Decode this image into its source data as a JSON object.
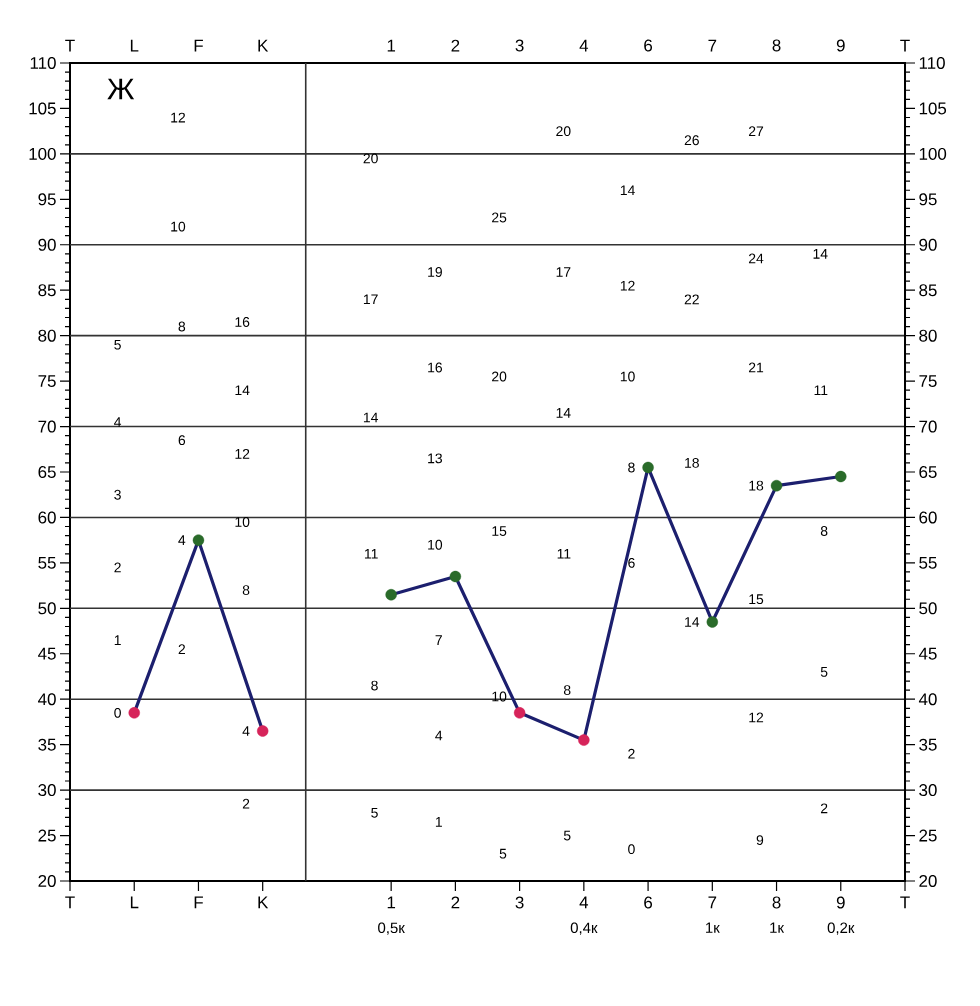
{
  "chart_data": {
    "type": "line",
    "categories": [
      "T",
      "L",
      "F",
      "K",
      null,
      "1",
      "2",
      "3",
      "4",
      "6",
      "7",
      "8",
      "9",
      "T"
    ],
    "series": [
      {
        "color": "#1c1f6e",
        "values": [
          null,
          38.5,
          57.5,
          36.5,
          null,
          51.5,
          53.5,
          38.5,
          35.5,
          65.5,
          48.5,
          63.5,
          64.5,
          null
        ],
        "colors": [
          null,
          "#d6245a",
          "#2a6b2a",
          "#d6245a",
          null,
          "#2a6b2a",
          "#2a6b2a",
          "#d6245a",
          "#d6245a",
          "#2a6b2a",
          "#2a6b2a",
          "#2a6b2a",
          "#2a6b2a",
          null
        ]
      }
    ],
    "marker": "circle",
    "line_style": "solid",
    "ylim": [
      20,
      110
    ],
    "yticks": [
      20,
      25,
      30,
      35,
      40,
      45,
      50,
      55,
      60,
      65,
      70,
      75,
      80,
      85,
      90,
      95,
      100,
      105,
      110
    ],
    "y2lim": [
      20,
      110
    ],
    "y2ticks": [
      20,
      25,
      30,
      35,
      40,
      45,
      50,
      55,
      60,
      65,
      70,
      75,
      80,
      85,
      90,
      95,
      100,
      105,
      110
    ],
    "ref_lines": [
      {
        "axis": "y",
        "value": 30,
        "color": "#333333"
      },
      {
        "axis": "y",
        "value": 40,
        "color": "#333333"
      },
      {
        "axis": "y",
        "value": 50,
        "color": "#333333"
      },
      {
        "axis": "y",
        "value": 60,
        "color": "#333333"
      },
      {
        "axis": "y",
        "value": 70,
        "color": "#333333"
      },
      {
        "axis": "y",
        "value": 80,
        "color": "#333333"
      },
      {
        "axis": "y",
        "value": 90,
        "color": "#333333"
      },
      {
        "axis": "y",
        "value": 100,
        "color": "#333333"
      }
    ],
    "annotations": [
      "Ж",
      "0",
      "1",
      "2",
      "3",
      "4",
      "5",
      "2",
      "4",
      "6",
      "8",
      "10",
      "12",
      "2",
      "4",
      "8",
      "10",
      "12",
      "14",
      "16",
      "5",
      "8",
      "11",
      "14",
      "17",
      "20",
      "1",
      "4",
      "7",
      "10",
      "13",
      "16",
      "19",
      "5",
      "10",
      "15",
      "20",
      "25",
      "5",
      "8",
      "11",
      "14",
      "17",
      "20",
      "0",
      "2",
      "6",
      "8",
      "10",
      "12",
      "14",
      "14",
      "18",
      "22",
      "26",
      "9",
      "12",
      "15",
      "18",
      "21",
      "24",
      "27",
      "2",
      "5",
      "8",
      "11",
      "14",
      "0,5к",
      "0,4к",
      "1к",
      "1к",
      "0,2к"
    ]
  }
}
